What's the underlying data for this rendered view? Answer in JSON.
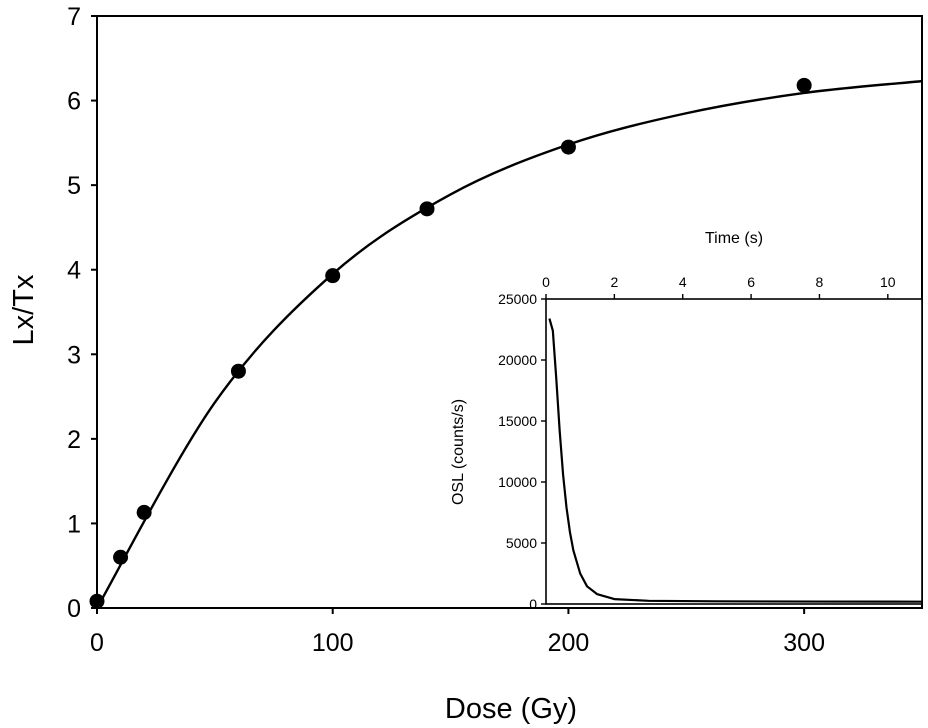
{
  "chart_data": [
    {
      "type": "scatter",
      "title": "",
      "xlabel": "Dose (Gy)",
      "ylabel": "Lx/Tx",
      "xlim": [
        0,
        350
      ],
      "ylim": [
        0,
        7
      ],
      "xticks": [
        0,
        100,
        200,
        300
      ],
      "yticks": [
        0,
        1,
        2,
        3,
        4,
        5,
        6,
        7
      ],
      "grid": false,
      "legend": "none",
      "series": [
        {
          "kind": "points",
          "x": [
            0,
            10,
            20,
            60,
            100,
            140,
            200,
            300
          ],
          "y": [
            0.08,
            0.6,
            1.13,
            2.8,
            3.93,
            4.72,
            5.45,
            6.18
          ]
        },
        {
          "kind": "fit-curve",
          "x": [
            0,
            50,
            100,
            150,
            200,
            250,
            300,
            350
          ],
          "y": [
            0,
            2.43,
            3.95,
            4.89,
            5.48,
            5.85,
            6.09,
            6.23
          ]
        }
      ]
    },
    {
      "type": "line",
      "title": "",
      "xlabel": "Time (s)",
      "ylabel": "OSL (counts/s)",
      "xlim": [
        0,
        11
      ],
      "ylim": [
        0,
        25000
      ],
      "xticks": [
        0,
        2,
        4,
        6,
        8,
        10
      ],
      "yticks": [
        0,
        5000,
        10000,
        15000,
        20000,
        25000
      ],
      "x_axis_position": "top",
      "inset": true,
      "grid": false,
      "series": [
        {
          "x": [
            0.1,
            0.2,
            0.3,
            0.4,
            0.5,
            0.6,
            0.7,
            0.8,
            1.0,
            1.2,
            1.5,
            2.0,
            3.0,
            5.0,
            8.0,
            11.0
          ],
          "y": [
            23400,
            22400,
            18500,
            14200,
            10600,
            7900,
            5900,
            4400,
            2500,
            1450,
            800,
            400,
            260,
            220,
            200,
            190
          ]
        }
      ]
    }
  ]
}
